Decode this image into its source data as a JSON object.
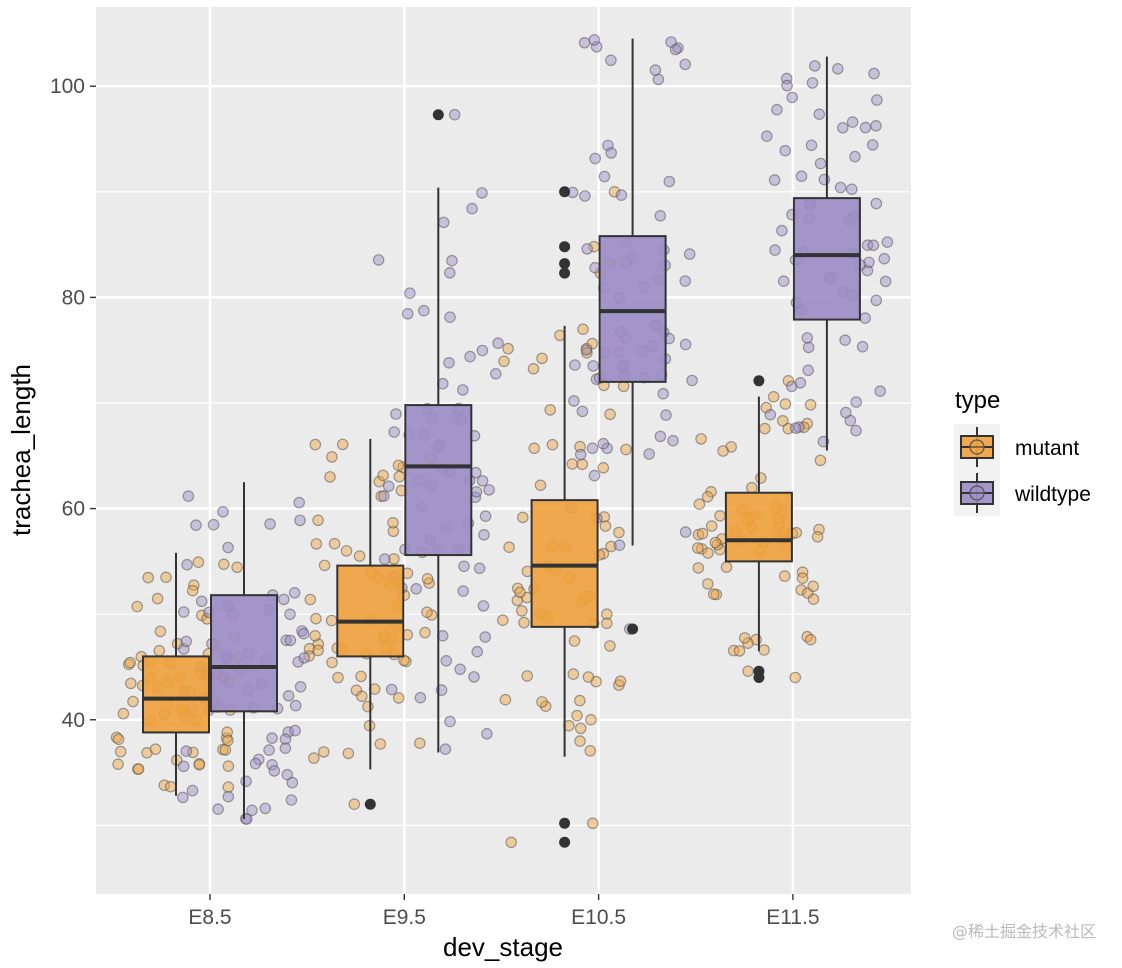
{
  "watermark": "@稀土掘金技术社区",
  "chart_data": {
    "type": "boxplot",
    "xlabel": "dev_stage",
    "ylabel": "trachea_length",
    "categories": [
      "E8.5",
      "E9.5",
      "E10.5",
      "E11.5"
    ],
    "y_ticks": [
      40,
      60,
      80,
      100
    ],
    "ylim": [
      23.5,
      107.5
    ],
    "grid": true,
    "jitter_points": true,
    "legend": {
      "title": "type",
      "position": "right"
    },
    "series": [
      {
        "name": "mutant",
        "color": "#f0a13c",
        "boxes": [
          {
            "category": "E8.5",
            "q1": 38.8,
            "median": 42.0,
            "q3": 46.0,
            "whisker_low": 32.8,
            "whisker_high": 55.8,
            "outliers": []
          },
          {
            "category": "E9.5",
            "q1": 46.0,
            "median": 49.3,
            "q3": 54.6,
            "whisker_low": 35.3,
            "whisker_high": 66.6,
            "outliers": [
              32.0
            ]
          },
          {
            "category": "E10.5",
            "q1": 48.8,
            "median": 54.6,
            "q3": 60.8,
            "whisker_low": 36.5,
            "whisker_high": 77.3,
            "outliers": [
              30.2,
              28.4,
              82.3,
              83.2,
              84.8,
              90.0
            ]
          },
          {
            "category": "E11.5",
            "q1": 55.0,
            "median": 57.0,
            "q3": 61.5,
            "whisker_low": 46.5,
            "whisker_high": 70.6,
            "outliers": [
              44.0,
              44.6,
              72.1
            ]
          }
        ]
      },
      {
        "name": "wildtype",
        "color": "#9b8cc5",
        "boxes": [
          {
            "category": "E8.5",
            "q1": 40.8,
            "median": 45.0,
            "q3": 51.8,
            "whisker_low": 30.6,
            "whisker_high": 62.5,
            "outliers": []
          },
          {
            "category": "E9.5",
            "q1": 55.6,
            "median": 64.0,
            "q3": 69.8,
            "whisker_low": 36.9,
            "whisker_high": 90.4,
            "outliers": [
              97.3
            ]
          },
          {
            "category": "E10.5",
            "q1": 72.0,
            "median": 78.7,
            "q3": 85.8,
            "whisker_low": 56.5,
            "whisker_high": 104.5,
            "outliers": [
              48.6
            ]
          },
          {
            "category": "E11.5",
            "q1": 77.9,
            "median": 84.0,
            "q3": 89.4,
            "whisker_low": 65.5,
            "whisker_high": 102.8,
            "outliers": []
          }
        ]
      }
    ]
  }
}
